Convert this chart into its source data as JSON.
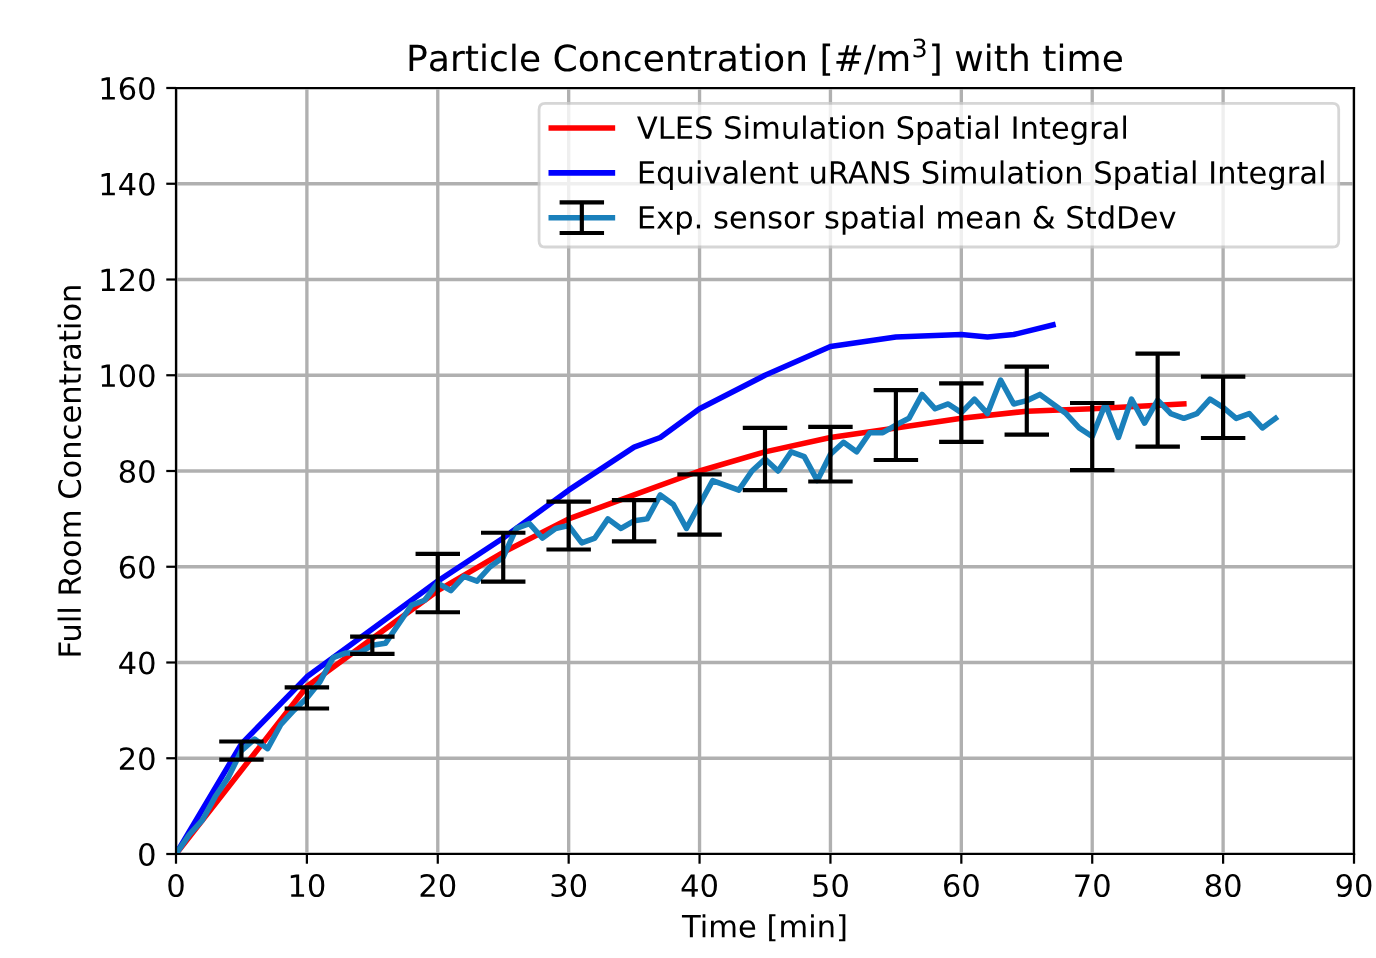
{
  "chart_data": {
    "type": "line",
    "title": "Particle Concentration [#/m$^{3}$] with time",
    "xlabel": "Time [min]",
    "ylabel": "Full Room Concentration",
    "xlim": [
      0,
      90
    ],
    "xticks": [
      0,
      10,
      20,
      30,
      40,
      50,
      60,
      70,
      80,
      90
    ],
    "ylim": [
      0,
      160
    ],
    "yticks": [
      0,
      20,
      40,
      60,
      80,
      100,
      120,
      140,
      160
    ],
    "grid": true,
    "legend": "top right",
    "series": [
      {
        "name": "VLES Simulation Spatial Integral",
        "color": "#ff0000",
        "x": [
          0,
          10,
          15,
          20,
          25,
          30,
          35,
          40,
          45,
          50,
          55,
          60,
          65,
          70,
          77
        ],
        "values": [
          0,
          35,
          45,
          55,
          63,
          70,
          75,
          80,
          84,
          87,
          89,
          91,
          92.5,
          93,
          94
        ]
      },
      {
        "name": "Equivalent uRANS Simulation Spatial Integral",
        "color": "#0000ff",
        "x": [
          0,
          5,
          10,
          15,
          20,
          25,
          30,
          35,
          37,
          40,
          45,
          50,
          55,
          60,
          62,
          64,
          67
        ],
        "values": [
          0,
          23,
          37,
          47,
          57,
          66,
          76,
          85,
          87,
          93,
          100,
          106,
          108,
          108.5,
          108,
          108.5,
          110.5
        ]
      },
      {
        "name": "Exp. sensor spatial mean & StdDev",
        "color": "#1a80bb",
        "x": [
          0,
          1,
          2,
          3,
          4,
          5,
          6,
          7,
          8,
          9,
          10,
          11,
          12,
          13,
          14,
          15,
          16,
          17,
          18,
          19,
          20,
          21,
          22,
          23,
          24,
          25,
          26,
          27,
          28,
          29,
          30,
          31,
          32,
          33,
          34,
          35,
          36,
          37,
          38,
          39,
          40,
          41,
          42,
          43,
          44,
          45,
          46,
          47,
          48,
          49,
          50,
          51,
          52,
          53,
          54,
          55,
          56,
          57,
          58,
          59,
          60,
          61,
          62,
          63,
          64,
          65,
          66,
          67,
          68,
          69,
          70,
          71,
          72,
          73,
          74,
          75,
          76,
          77,
          78,
          79,
          80,
          81,
          82,
          83,
          84
        ],
        "values": [
          0,
          4,
          7,
          12,
          16,
          21.6,
          24,
          22,
          27,
          30,
          32.6,
          36,
          41,
          42,
          42,
          43.6,
          44,
          48,
          52,
          53,
          56.6,
          55,
          58,
          57,
          60,
          62,
          68,
          69,
          66,
          68,
          68.6,
          65,
          66,
          70,
          68,
          69.6,
          70,
          75,
          73,
          68,
          73,
          78,
          77,
          76,
          80,
          82.5,
          80,
          84,
          83,
          78,
          83.5,
          86,
          84,
          88,
          88,
          89.6,
          91,
          96,
          93,
          94,
          92.2,
          95,
          92,
          99,
          94,
          94.7,
          96,
          94,
          92,
          89,
          87.2,
          94,
          87,
          95,
          90,
          94.8,
          92,
          91,
          92,
          95,
          93.3,
          91,
          92,
          89,
          91
        ],
        "errors": [
          null,
          null,
          null,
          null,
          null,
          1.9,
          null,
          null,
          null,
          null,
          2.2,
          null,
          null,
          null,
          null,
          1.8,
          null,
          null,
          null,
          null,
          6.1,
          null,
          null,
          null,
          null,
          5.1,
          null,
          null,
          null,
          null,
          5,
          null,
          null,
          null,
          null,
          4.3,
          null,
          null,
          null,
          null,
          6.3,
          null,
          null,
          null,
          null,
          6.5,
          null,
          null,
          null,
          null,
          5.7,
          null,
          null,
          null,
          null,
          7.3,
          null,
          null,
          null,
          null,
          6.1,
          null,
          null,
          null,
          null,
          7.1,
          null,
          null,
          null,
          null,
          7,
          null,
          null,
          null,
          null,
          9.7,
          null,
          null,
          null,
          null,
          6.4,
          null,
          null,
          null,
          null
        ]
      }
    ]
  }
}
